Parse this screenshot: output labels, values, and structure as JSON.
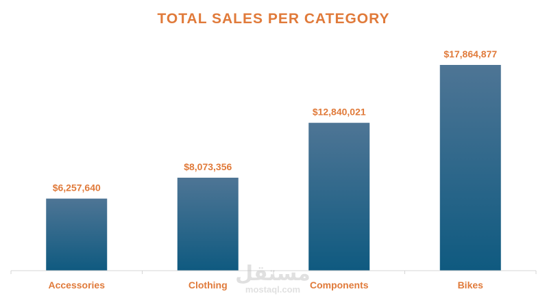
{
  "chart_data": {
    "type": "bar",
    "title": "TOTAL SALES PER CATEGORY",
    "xlabel": "",
    "ylabel": "",
    "categories": [
      "Accessories",
      "Clothing",
      "Components",
      "Bikes"
    ],
    "values": [
      6257640,
      8073356,
      12840021,
      17864877
    ],
    "data_labels": [
      "$6,257,640",
      "$8,073,356",
      "$12,840,021",
      "$17,864,877"
    ],
    "ylim": [
      0,
      20000000
    ],
    "grid": false,
    "legend": "none"
  },
  "colors": {
    "accent": "#e07a3a",
    "bar_top": "#4e7595",
    "bar_bottom": "#0f5a80",
    "axis": "#d4d4d4",
    "watermark": "#c8c8c8"
  },
  "watermark": {
    "arabic": "مستقل",
    "latin": "mostaql.com"
  }
}
